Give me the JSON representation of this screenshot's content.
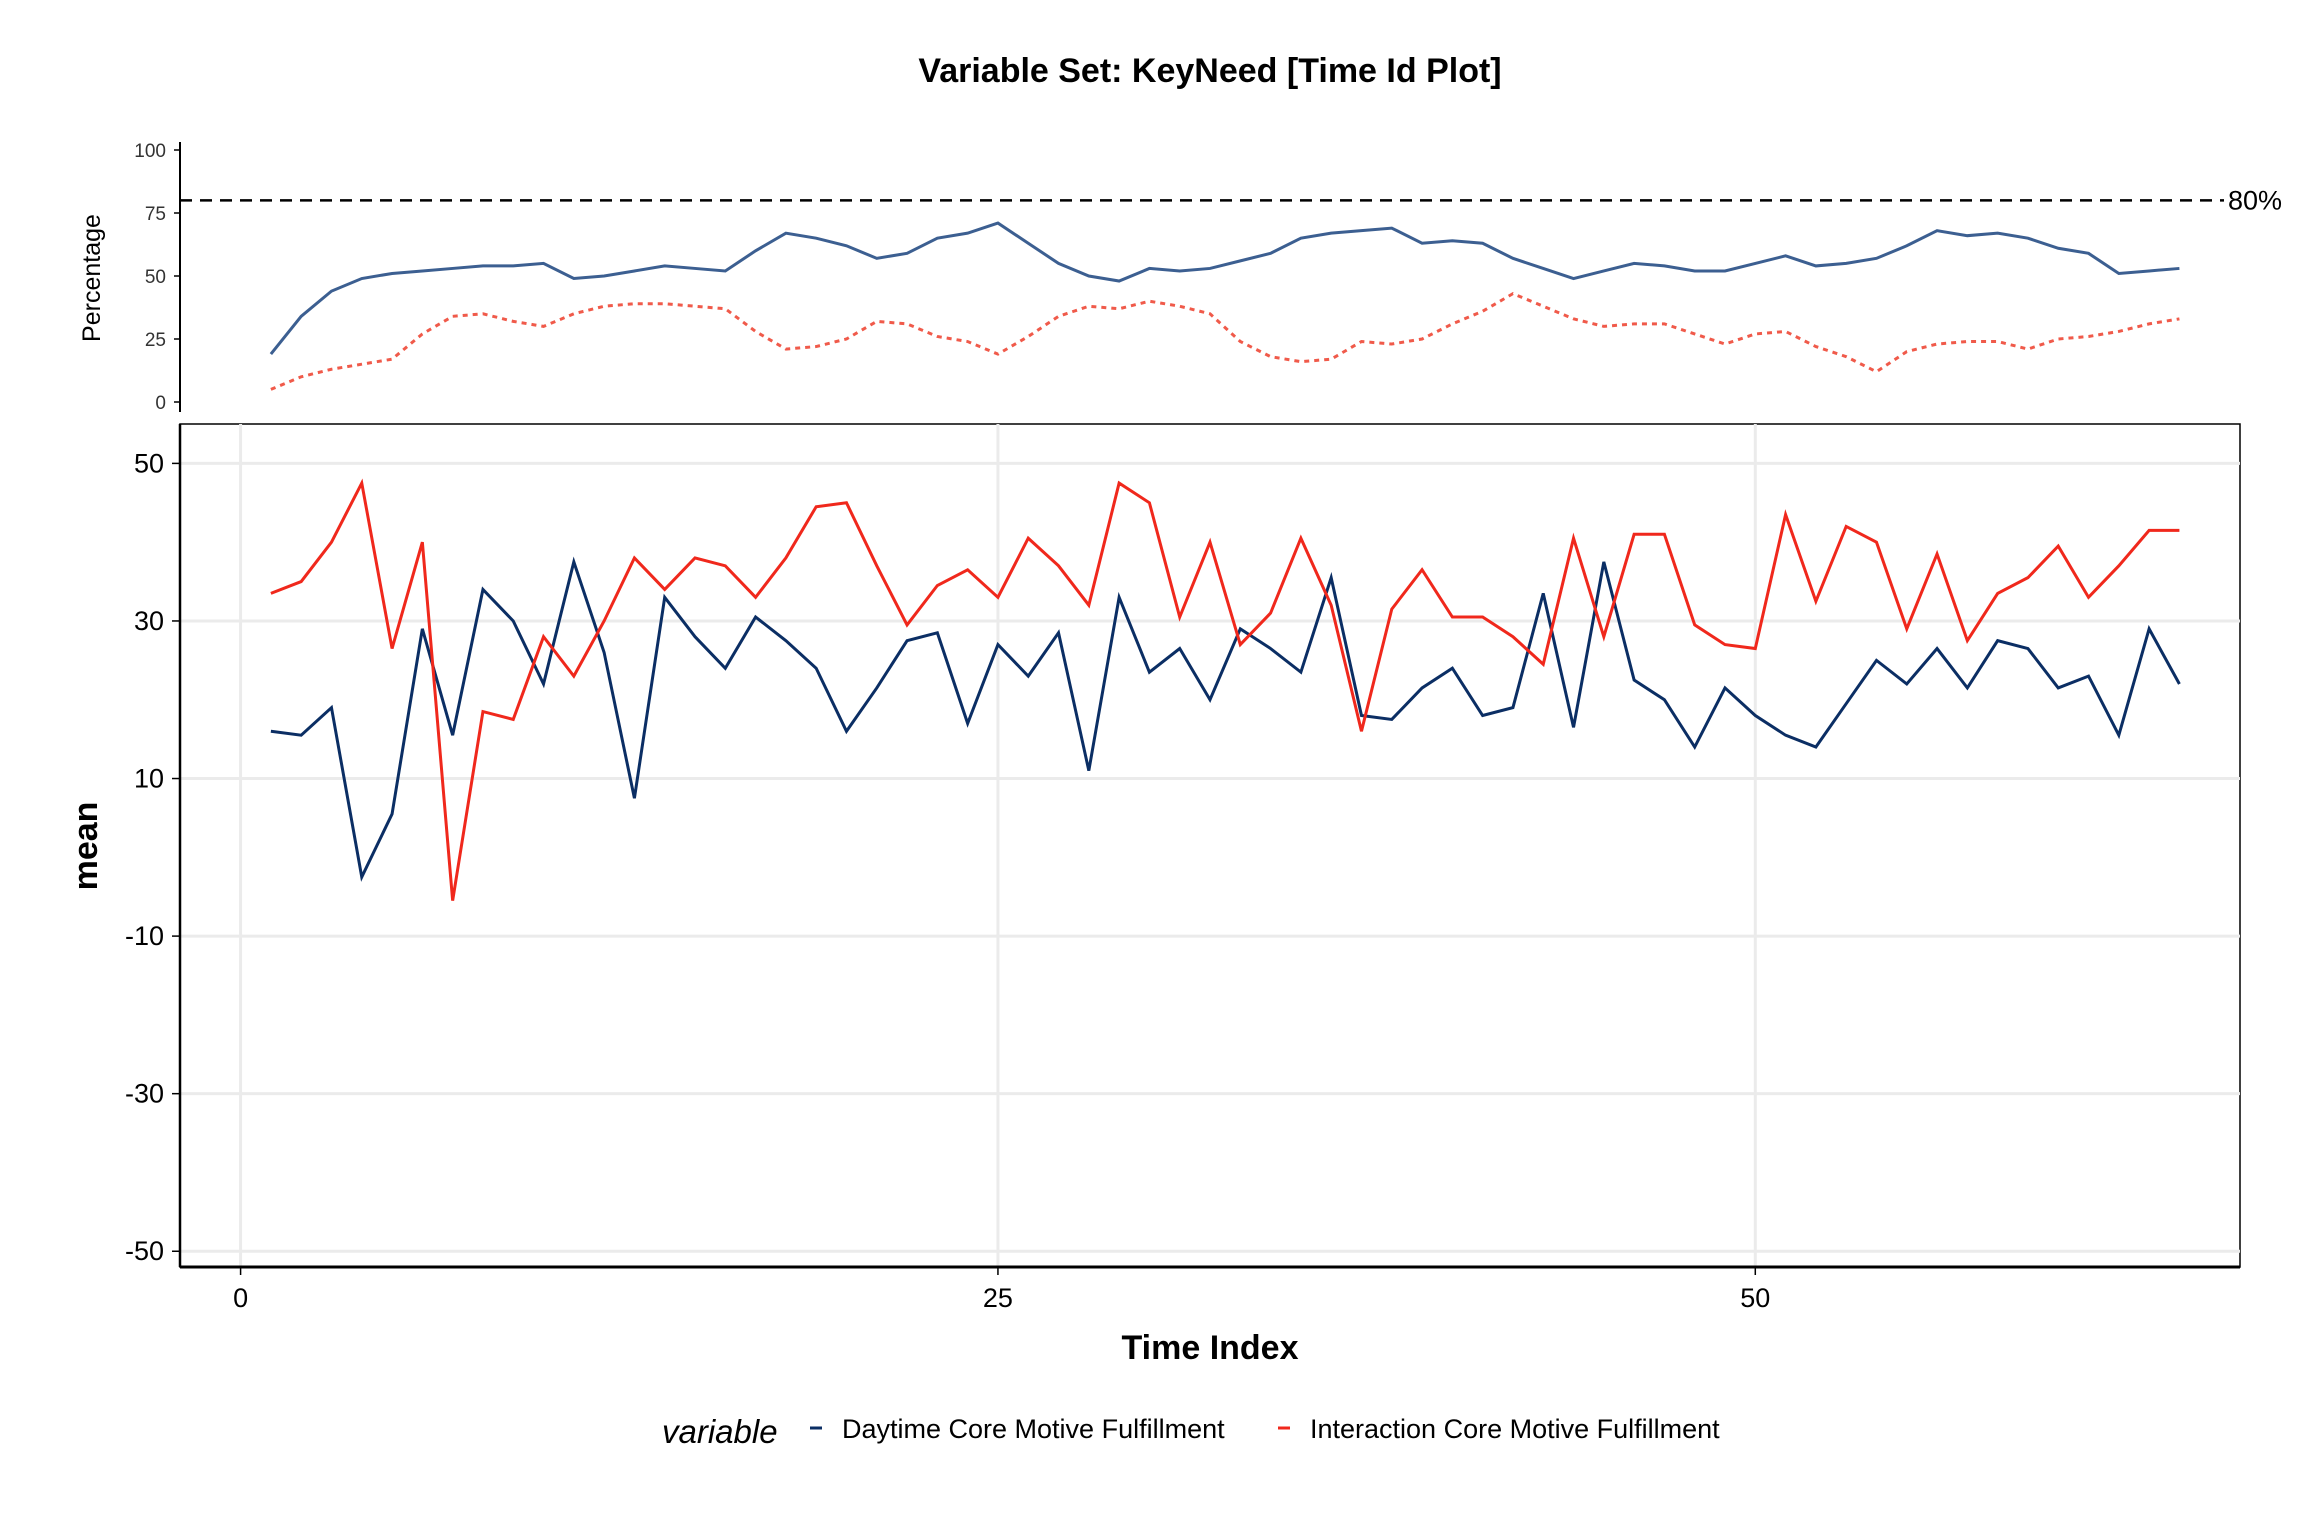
{
  "title": "Variable Set: KeyNeed [Time Id Plot]",
  "chart_data": [
    {
      "type": "line",
      "panel": "percentage",
      "ylabel": "Percentage",
      "ylim": [
        0,
        100
      ],
      "yticks": [
        "0",
        "25",
        "50",
        "75",
        "100"
      ],
      "reference_line": {
        "value": 80,
        "label": "80%",
        "style": "dashed"
      },
      "x": [
        1,
        2,
        3,
        4,
        5,
        6,
        7,
        8,
        9,
        10,
        11,
        12,
        13,
        14,
        15,
        16,
        17,
        18,
        19,
        20,
        21,
        22,
        23,
        24,
        25,
        26,
        27,
        28,
        29,
        30,
        31,
        32,
        33,
        34,
        35,
        36,
        37,
        38,
        39,
        40,
        41,
        42,
        43,
        44,
        45,
        46,
        47,
        48,
        49,
        50,
        51,
        52,
        53,
        54,
        55,
        56,
        57,
        58,
        59,
        60,
        61,
        62,
        63,
        64
      ],
      "series": [
        {
          "color": "#3c5f91",
          "style": "solid",
          "values": [
            19,
            34,
            44,
            49,
            51,
            52,
            53,
            54,
            54,
            55,
            49,
            50,
            52,
            54,
            53,
            52,
            60,
            67,
            65,
            62,
            57,
            59,
            65,
            67,
            71,
            63,
            55,
            50,
            48,
            53,
            52,
            53,
            56,
            59,
            65,
            67,
            68,
            69,
            63,
            64,
            63,
            57,
            53,
            49,
            52,
            55,
            54,
            52,
            52,
            55,
            58,
            54,
            55,
            57,
            62,
            68,
            66,
            67,
            65,
            61,
            59,
            51,
            52,
            53
          ],
          "note_values_for_x": "1..64"
        },
        {
          "color": "#f05a4a",
          "style": "dotted",
          "values": [
            5,
            10,
            13,
            15,
            17,
            27,
            34,
            35,
            32,
            30,
            35,
            38,
            39,
            39,
            38,
            37,
            28,
            21,
            22,
            25,
            32,
            31,
            26,
            24,
            19,
            26,
            34,
            38,
            37,
            40,
            38,
            35,
            24,
            18,
            16,
            17,
            24,
            23,
            25,
            31,
            36,
            43,
            38,
            33,
            30,
            31,
            31,
            27,
            23,
            27,
            28,
            22,
            18,
            12,
            20,
            23,
            24,
            24,
            21,
            25,
            26,
            28,
            31,
            33
          ]
        }
      ]
    },
    {
      "type": "line",
      "panel": "mean",
      "xlabel": "Time Index",
      "ylabel": "mean",
      "ylim": [
        -52,
        55
      ],
      "xlim": [
        -2,
        66
      ],
      "xticks": [
        "0",
        "25",
        "50"
      ],
      "yticks": [
        "-50",
        "-30",
        "-10",
        "10",
        "30",
        "50"
      ],
      "grid": true,
      "legend_title": "variable",
      "legend_position": "bottom",
      "x": [
        1,
        2,
        3,
        4,
        5,
        6,
        7,
        8,
        9,
        10,
        11,
        12,
        13,
        14,
        15,
        16,
        17,
        18,
        19,
        20,
        21,
        22,
        23,
        24,
        25,
        26,
        27,
        28,
        29,
        30,
        31,
        32,
        33,
        34,
        35,
        36,
        37,
        38,
        39,
        40,
        41,
        42,
        43,
        44,
        45,
        46,
        47,
        48,
        49,
        50,
        51,
        52,
        53,
        54,
        55,
        56,
        57,
        58,
        59,
        60,
        61,
        62,
        63,
        64
      ],
      "series": [
        {
          "name": "Daytime Core Motive Fulfillment",
          "color": "#0b2e64",
          "values": [
            16,
            15.5,
            19,
            -2.5,
            5.5,
            29,
            15.5,
            34,
            30,
            22,
            37.5,
            26,
            7.5,
            33,
            28,
            24,
            30.5,
            27.5,
            24,
            16,
            21.5,
            27.5,
            28.5,
            17,
            27,
            23,
            28.5,
            11,
            33,
            23.5,
            26.5,
            20,
            29,
            26.5,
            23.5,
            35.5,
            18,
            17.5,
            21.5,
            24,
            18,
            19,
            33.5,
            16.5,
            37.5,
            22.5,
            20,
            14,
            21.5,
            18,
            15.5,
            14,
            19.5,
            25,
            22,
            26.5,
            21.5,
            27.5,
            26.5,
            21.5,
            23,
            15.5,
            29,
            22
          ],
          "note": "64 points"
        },
        {
          "name": "Interaction Core Motive Fulfillment",
          "color": "#f0281c",
          "values": [
            33.5,
            35,
            40,
            47.5,
            26.5,
            40,
            -5.5,
            18.5,
            17.5,
            28,
            23,
            30,
            38,
            34,
            38,
            37,
            33,
            38,
            44.5,
            45,
            37,
            29.5,
            34.5,
            36.5,
            33,
            40.5,
            37,
            32,
            47.5,
            45,
            30.5,
            40,
            27,
            31,
            40.5,
            32,
            16,
            31.5,
            36.5,
            30.5,
            30.5,
            28,
            24.5,
            40.5,
            28,
            41,
            41,
            29.5,
            27,
            26.5,
            43.5,
            32.5,
            42,
            40,
            29,
            38.5,
            27.5,
            33.5,
            35.5,
            39.5,
            33,
            37,
            41.5,
            41.5
          ]
        }
      ]
    }
  ],
  "legend": {
    "title": "variable",
    "items": [
      {
        "label": "Daytime Core Motive Fulfillment",
        "color": "#0b2e64"
      },
      {
        "label": "Interaction Core Motive Fulfillment",
        "color": "#f0281c"
      }
    ]
  }
}
